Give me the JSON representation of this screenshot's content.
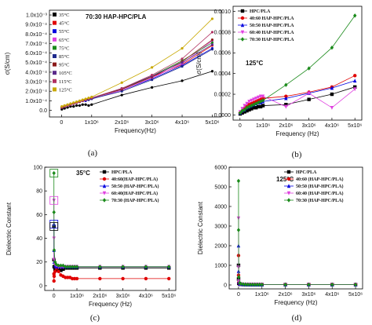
{
  "chart_data": [
    {
      "id": "a",
      "caption": "(a)",
      "type": "line",
      "title": "70:30 HAP-HPC/PLA",
      "xlabel": "Frequency(Hz)",
      "ylabel": "σ(S/cm)",
      "xlim": [
        -400000,
        5300000
      ],
      "ylim": [
        -7e-05,
        0.00105
      ],
      "xticks": [
        0,
        1000000,
        2000000,
        3000000,
        4000000,
        5000000
      ],
      "xtick_labels": [
        "0",
        "1x10⁶",
        "2x10⁶",
        "3x10⁶",
        "4x10⁶",
        "5x10⁶"
      ],
      "yticks": [
        0,
        0.0001,
        0.0002,
        0.0003,
        0.0004,
        0.0005,
        0.0006,
        0.0007,
        0.0008,
        0.0009,
        0.001
      ],
      "ytick_labels": [
        "0.0",
        "1.0x10⁻⁴",
        "2.0x10⁻⁴",
        "3.0x10⁻⁴",
        "4.0x10⁻⁴",
        "5.0x10⁻⁴",
        "6.0x10⁻⁴",
        "7.0x10⁻⁴",
        "8.0x10⁻⁴",
        "9.0x10⁻⁴",
        "1.0x10⁻³"
      ],
      "legend_position": "top-left",
      "x": [
        10000,
        100000,
        200000,
        300000,
        400000,
        500000,
        600000,
        700000,
        800000,
        900000,
        1000000,
        2000000,
        3000000,
        4000000,
        5000000
      ],
      "series": [
        {
          "name": "35°C",
          "color": "#000000",
          "values": [
            1e-05,
            2e-05,
            3e-05,
            4e-05,
            4e-05,
            5e-05,
            5e-05,
            6e-05,
            6e-05,
            5e-05,
            6e-05,
            0.00016,
            0.00024,
            0.00031,
            0.00041
          ]
        },
        {
          "name": "45°C",
          "color": "#e00000",
          "values": [
            3e-05,
            4e-05,
            5e-05,
            6e-05,
            7e-05,
            8e-05,
            9e-05,
            0.0001,
            0.00011,
            0.00012,
            0.00013,
            0.00022,
            0.00035,
            0.00048,
            0.00068
          ]
        },
        {
          "name": "55°C",
          "color": "#0000e0",
          "values": [
            3e-05,
            4e-05,
            5e-05,
            6e-05,
            7e-05,
            8e-05,
            9e-05,
            0.0001,
            0.0001,
            0.00011,
            0.00012,
            0.00021,
            0.00033,
            0.00047,
            0.00065
          ]
        },
        {
          "name": "65°C",
          "color": "#e040e0",
          "values": [
            3e-05,
            4e-05,
            5e-05,
            6e-05,
            7e-05,
            8e-05,
            9e-05,
            0.0001,
            0.00011,
            0.00012,
            0.00012,
            0.00021,
            0.00034,
            0.00049,
            0.00073
          ]
        },
        {
          "name": "75°C",
          "color": "#1a8a1a",
          "values": [
            3e-05,
            4e-05,
            5e-05,
            6e-05,
            7e-05,
            8e-05,
            9e-05,
            0.0001,
            0.00011,
            0.00012,
            0.00013,
            0.00022,
            0.00036,
            0.00052,
            0.00071
          ]
        },
        {
          "name": "85°C",
          "color": "#1e2a8c",
          "values": [
            3e-05,
            4e-05,
            5e-05,
            6e-05,
            7e-05,
            8e-05,
            9e-05,
            0.0001,
            0.00011,
            0.00011,
            0.00012,
            0.0002,
            0.00032,
            0.00046,
            0.00064
          ]
        },
        {
          "name": "95°C",
          "color": "#8b1a1a",
          "values": [
            3e-05,
            4e-05,
            5e-05,
            6e-05,
            7e-05,
            8e-05,
            9e-05,
            0.0001,
            0.00011,
            0.00012,
            0.00013,
            0.00022,
            0.00035,
            0.00051,
            0.00074
          ]
        },
        {
          "name": "105°C",
          "color": "#5a2a8a",
          "values": [
            3e-05,
            4e-05,
            5e-05,
            6e-05,
            7e-05,
            8e-05,
            9e-05,
            0.0001,
            0.00011,
            0.00012,
            0.00013,
            0.00023,
            0.00036,
            0.0005,
            0.00069
          ]
        },
        {
          "name": "115°C",
          "color": "#b03060",
          "values": [
            3e-05,
            4e-05,
            5e-05,
            6e-05,
            7e-05,
            8e-05,
            9e-05,
            0.0001,
            0.00011,
            0.00012,
            0.00013,
            0.00023,
            0.00037,
            0.00054,
            0.00082
          ]
        },
        {
          "name": "125°C",
          "color": "#c8a800",
          "values": [
            4e-05,
            5e-05,
            6e-05,
            7e-05,
            8e-05,
            9e-05,
            0.0001,
            0.00011,
            0.00012,
            0.00013,
            0.00014,
            0.00029,
            0.00045,
            0.00065,
            0.00096
          ]
        }
      ]
    },
    {
      "id": "b",
      "caption": "(b)",
      "type": "line",
      "annotation": "125°C",
      "xlabel": "Frequency (Hz)",
      "ylabel": "σ(S/cm)",
      "xlim": [
        -300000,
        5300000
      ],
      "ylim": [
        -5e-05,
        0.00105
      ],
      "xticks": [
        0,
        1000000,
        2000000,
        3000000,
        4000000,
        5000000
      ],
      "xtick_labels": [
        "0",
        "1x10⁶",
        "2x10⁶",
        "3x10⁶",
        "4x10⁶",
        "5x10⁶"
      ],
      "yticks": [
        0,
        0.0002,
        0.0004,
        0.0006,
        0.0008,
        0.001
      ],
      "ytick_labels": [
        "0.0000",
        "0.0002",
        "0.0004",
        "0.0006",
        "0.0008",
        "0.0010"
      ],
      "legend_position": "top-left",
      "x": [
        10000,
        100000,
        200000,
        300000,
        400000,
        500000,
        600000,
        700000,
        800000,
        900000,
        1000000,
        2000000,
        3000000,
        4000000,
        5000000
      ],
      "series": [
        {
          "name": "HPC/PLA",
          "color": "#000000",
          "marker": "square",
          "values": [
            1e-05,
            2e-05,
            3e-05,
            4e-05,
            5e-05,
            6e-05,
            7e-05,
            7e-05,
            8e-05,
            8e-05,
            9e-05,
            0.0001,
            0.00015,
            0.0002,
            0.00027
          ]
        },
        {
          "name": "40:60 HAP-HPC/PLA",
          "color": "#e00000",
          "marker": "circle",
          "values": [
            2e-05,
            4e-05,
            6e-05,
            8e-05,
            0.0001,
            0.00011,
            0.00012,
            0.00013,
            0.00014,
            0.00015,
            0.00016,
            0.00018,
            0.00022,
            0.00027,
            0.00038
          ]
        },
        {
          "name": "50:50 HAP-HPC/PLA",
          "color": "#0000e0",
          "marker": "triangle",
          "values": [
            2e-05,
            4e-05,
            5e-05,
            7e-05,
            8e-05,
            9e-05,
            0.0001,
            0.00011,
            0.00012,
            0.00012,
            0.00013,
            0.00016,
            0.00021,
            0.00026,
            0.00033
          ]
        },
        {
          "name": "60:40 HAP-HPC/PLA",
          "color": "#e040e0",
          "marker": "triangle-down",
          "values": [
            3e-05,
            6e-05,
            9e-05,
            0.00011,
            0.00013,
            0.00014,
            0.00015,
            0.00016,
            0.00017,
            0.00018,
            0.00018,
            8e-05,
            0.00021,
            7e-05,
            0.00025
          ]
        },
        {
          "name": "70:30 HAP-HPC/PLA",
          "color": "#1a8a1a",
          "marker": "diamond",
          "values": [
            2e-05,
            4e-05,
            5e-05,
            7e-05,
            8e-05,
            9e-05,
            0.0001,
            0.00011,
            0.00012,
            0.00013,
            0.00014,
            0.00029,
            0.00045,
            0.00065,
            0.00096
          ]
        }
      ]
    },
    {
      "id": "c",
      "caption": "(c)",
      "type": "line",
      "annotation": "35°C",
      "xlabel": "Frequency (Hz)",
      "ylabel": "Dielectric Constant",
      "xlim": [
        -400000,
        5300000
      ],
      "ylim": [
        -4,
        100
      ],
      "xticks": [
        0,
        1000000,
        2000000,
        3000000,
        4000000,
        5000000
      ],
      "xtick_labels": [
        "0",
        "1x10⁶",
        "2x10⁶",
        "3x10⁶",
        "4x10⁶",
        "5x10⁶"
      ],
      "yticks": [
        0,
        20,
        40,
        60,
        80,
        100
      ],
      "ytick_labels": [
        "0",
        "20",
        "40",
        "60",
        "80",
        "100"
      ],
      "legend_position": "top-right",
      "x": [
        100,
        1000,
        10000,
        50000,
        100000,
        200000,
        300000,
        400000,
        500000,
        600000,
        700000,
        800000,
        900000,
        1000000,
        2000000,
        3000000,
        4000000,
        5000000
      ],
      "series": [
        {
          "name": "HPC/PLA",
          "color": "#000000",
          "marker": "square",
          "values": [
            50,
            22,
            16,
            14,
            13,
            13,
            13,
            14,
            15,
            15,
            15,
            15,
            15,
            15,
            15,
            15,
            15,
            15
          ]
        },
        {
          "name": "40:60(HAP-HPC/PLA)",
          "color": "#e00000",
          "marker": "circle",
          "values": [
            10,
            4,
            8,
            12,
            15,
            12,
            9,
            8,
            7,
            7,
            7,
            6,
            6,
            6,
            6,
            6,
            6,
            6
          ]
        },
        {
          "name": "50:50 (HAP-HPC/PLA)",
          "color": "#0000e0",
          "marker": "triangle",
          "values": [
            52,
            30,
            20,
            17,
            16,
            16,
            16,
            16,
            16,
            16,
            16,
            16,
            16,
            16,
            16,
            16,
            16,
            16
          ]
        },
        {
          "name": "60:40(HAP-HPC/PLA)",
          "color": "#e040e0",
          "marker": "triangle-down",
          "values": [
            72,
            40,
            22,
            18,
            17,
            16,
            16,
            16,
            16,
            16,
            16,
            16,
            16,
            16,
            16,
            16,
            16,
            16
          ]
        },
        {
          "name": "70:30 (HAP-HPC/PLA)",
          "color": "#1a8a1a",
          "marker": "diamond",
          "values": [
            95,
            62,
            30,
            20,
            18,
            17,
            17,
            17,
            16,
            16,
            16,
            16,
            16,
            16,
            16,
            16,
            16,
            16
          ]
        }
      ]
    },
    {
      "id": "d",
      "caption": "(d)",
      "type": "line",
      "annotation": "125°C",
      "xlabel": "Frequency (Hz)",
      "ylabel": "Dielectric Constant",
      "xlim": [
        -400000,
        5300000
      ],
      "ylim": [
        -200,
        6000
      ],
      "xticks": [
        0,
        1000000,
        2000000,
        3000000,
        4000000,
        5000000
      ],
      "xtick_labels": [
        "0",
        "1x10⁶",
        "2x10⁶",
        "3x10⁶",
        "4x10⁶",
        "5x10⁶"
      ],
      "yticks": [
        0,
        1000,
        2000,
        3000,
        4000,
        5000,
        6000
      ],
      "ytick_labels": [
        "0",
        "1000",
        "2000",
        "3000",
        "4000",
        "5000",
        "6000"
      ],
      "legend_position": "top-right",
      "x": [
        100,
        1000,
        10000,
        50000,
        100000,
        200000,
        300000,
        400000,
        500000,
        600000,
        700000,
        800000,
        900000,
        1000000,
        2000000,
        3000000,
        4000000,
        5000000
      ],
      "series": [
        {
          "name": "HPC/PLA",
          "color": "#000000",
          "marker": "square",
          "values": [
            1000,
            300,
            80,
            40,
            30,
            20,
            20,
            20,
            20,
            20,
            20,
            20,
            20,
            20,
            20,
            20,
            20,
            20
          ]
        },
        {
          "name": "40:60 (HAP-HPC/PLA)",
          "color": "#e00000",
          "marker": "circle",
          "values": [
            1500,
            500,
            120,
            50,
            35,
            25,
            20,
            20,
            20,
            20,
            20,
            20,
            20,
            20,
            20,
            20,
            20,
            20
          ]
        },
        {
          "name": "50:50 (HAP-HPC/PLA)",
          "color": "#0000e0",
          "marker": "triangle",
          "values": [
            2000,
            700,
            150,
            60,
            40,
            30,
            25,
            22,
            20,
            20,
            20,
            20,
            20,
            20,
            20,
            20,
            20,
            20
          ]
        },
        {
          "name": "60:40 (HAP-HPC/PLA)",
          "color": "#e040e0",
          "marker": "triangle-down",
          "values": [
            3400,
            900,
            200,
            70,
            45,
            30,
            25,
            22,
            20,
            20,
            20,
            20,
            20,
            20,
            20,
            20,
            20,
            20
          ]
        },
        {
          "name": "70:30 (HAP-HPC/PLA)",
          "color": "#1a8a1a",
          "marker": "diamond",
          "values": [
            5300,
            2800,
            400,
            100,
            60,
            40,
            30,
            25,
            22,
            20,
            20,
            20,
            20,
            20,
            20,
            20,
            20,
            20
          ]
        }
      ]
    }
  ]
}
